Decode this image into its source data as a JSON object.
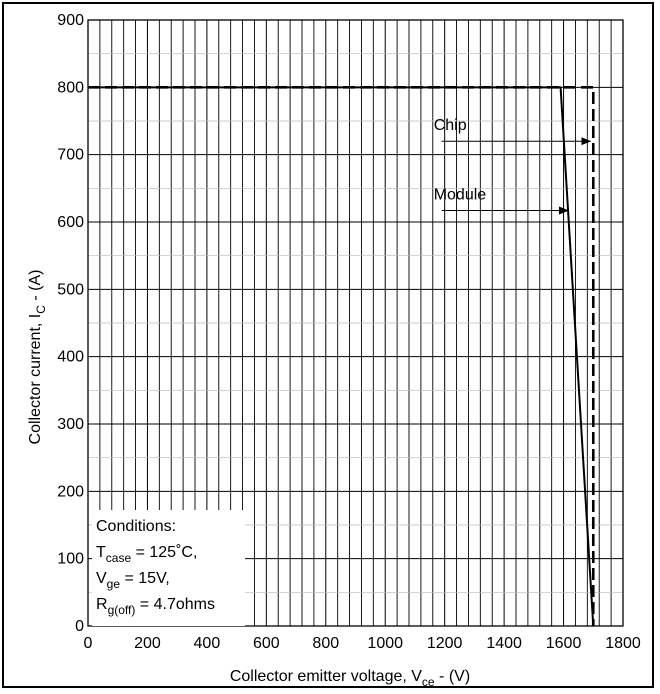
{
  "chart_data": {
    "type": "line",
    "xlabel": {
      "main": "Collector emitter voltage, V",
      "sub": "ce",
      "tail": " - (V)"
    },
    "ylabel": {
      "main": "Collector current, I",
      "sub": "C",
      "tail": " - (A)"
    },
    "xlim": [
      0,
      1800
    ],
    "ylim": [
      0,
      900
    ],
    "xticks": [
      "0",
      "200",
      "400",
      "600",
      "800",
      "1000",
      "1200",
      "1400",
      "1600",
      "1800"
    ],
    "yticks": [
      "0",
      "100",
      "200",
      "300",
      "400",
      "500",
      "600",
      "700",
      "800",
      "900"
    ],
    "grid": true,
    "series": [
      {
        "name": "Module",
        "style": "solid",
        "color": "#000000",
        "x": [
          0,
          1590,
          1700
        ],
        "y": [
          800,
          800,
          0
        ]
      },
      {
        "name": "Chip",
        "style": "dashed",
        "color": "#000000",
        "x": [
          0,
          1700,
          1700
        ],
        "y": [
          800,
          800,
          0
        ]
      }
    ],
    "annotations": [
      {
        "text": "Chip",
        "target_series": "Chip",
        "x_from": 1190,
        "x_to": 1700,
        "y": 720
      },
      {
        "text": "Module",
        "target_series": "Module",
        "x_from": 1190,
        "x_to": 1625,
        "y": 617
      }
    ],
    "conditions": {
      "title": "Conditions:",
      "lines": [
        {
          "main": "T",
          "sub": "case",
          "tail": " = 125˚C,"
        },
        {
          "main": "V",
          "sub": "ge",
          "tail": " = 15V,"
        },
        {
          "main": "R",
          "sub": "g(off)",
          "tail": " = 4.7ohms"
        }
      ]
    }
  }
}
